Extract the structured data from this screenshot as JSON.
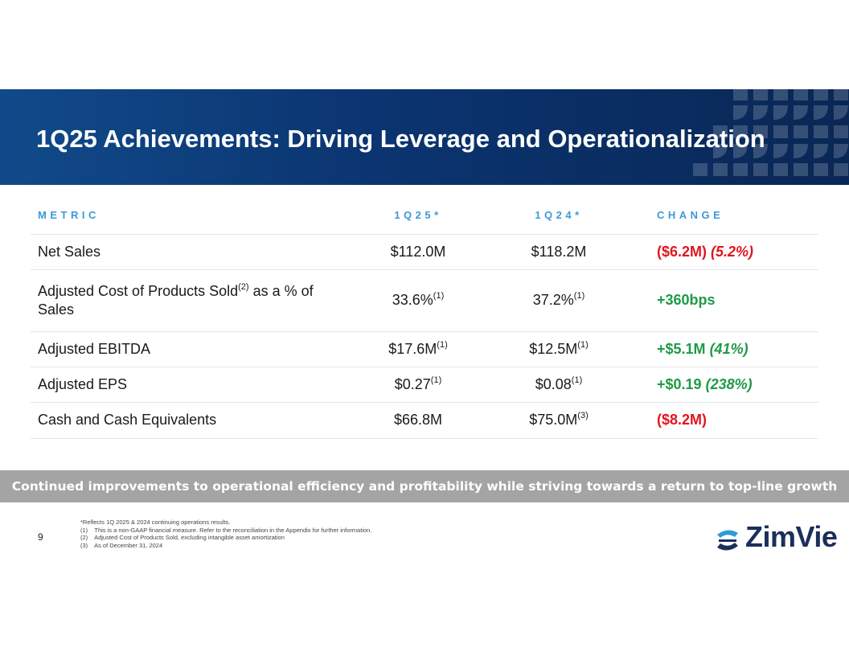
{
  "header": {
    "title": "1Q25 Achievements: Driving Leverage and Operationalization"
  },
  "table": {
    "columns": [
      "METRIC",
      "1Q25*",
      "1Q24*",
      "CHANGE"
    ],
    "rows": [
      {
        "metric": {
          "text": "Net Sales"
        },
        "q125": {
          "text": "$112.0M"
        },
        "q124": {
          "text": "$118.2M"
        },
        "change": {
          "text": "($6.2M)",
          "pct": "(5.2%)",
          "tone": "negative"
        }
      },
      {
        "metric": {
          "text": "Adjusted Cost of Products Sold",
          "sup": "(2)",
          "after": " as a % of Sales"
        },
        "q125": {
          "text": "33.6%",
          "sup": "(1)"
        },
        "q124": {
          "text": "37.2%",
          "sup": "(1)"
        },
        "change": {
          "text": "+360bps",
          "tone": "positive"
        }
      },
      {
        "metric": {
          "text": "Adjusted EBITDA"
        },
        "q125": {
          "text": "$17.6M",
          "sup": "(1)"
        },
        "q124": {
          "text": "$12.5M",
          "sup": "(1)"
        },
        "change": {
          "text": "+$5.1M",
          "pct": "(41%)",
          "tone": "positive"
        }
      },
      {
        "metric": {
          "text": "Adjusted EPS"
        },
        "q125": {
          "text": "$0.27",
          "sup": "(1)"
        },
        "q124": {
          "text": "$0.08",
          "sup": "(1)"
        },
        "change": {
          "text": "+$0.19",
          "pct": "(238%)",
          "tone": "positive"
        }
      },
      {
        "metric": {
          "text": "Cash and Cash Equivalents"
        },
        "q125": {
          "text": "$66.8M"
        },
        "q124": {
          "text": "$75.0M",
          "sup": "(3)"
        },
        "change": {
          "text": "($8.2M)",
          "tone": "negative"
        }
      }
    ]
  },
  "banner": "Continued improvements to operational efficiency and profitability while striving towards a return to top-line growth",
  "footnotes": [
    "*Reflects 1Q 2025 & 2024 continuing operations results.",
    "(1)    This is a non-GAAP financial measure. Refer to the reconciliation in the Appendix for further information.",
    "(2)    Adjusted Cost of Products Sold, excluding intangible asset amortization",
    "(3)    As of December 31, 2024"
  ],
  "page_number": "9",
  "logo": "ZimVie"
}
